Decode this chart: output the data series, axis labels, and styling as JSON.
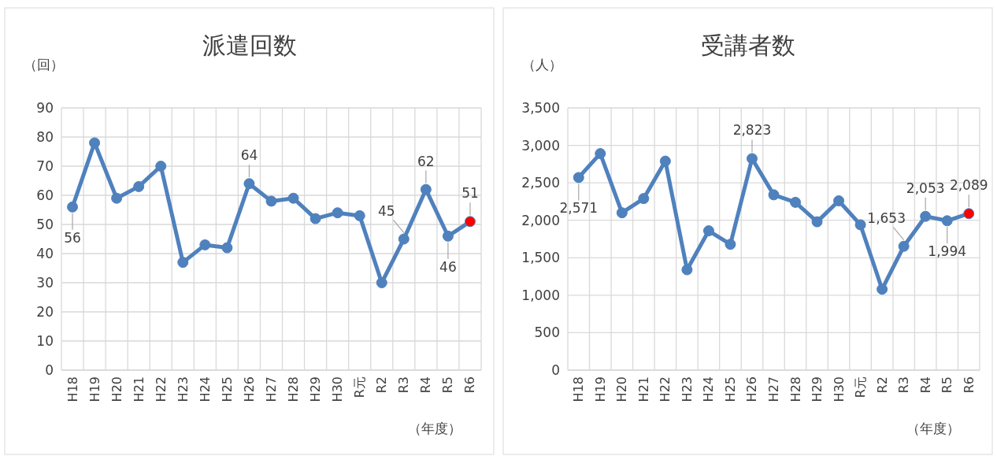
{
  "chart_data": [
    {
      "type": "line",
      "title": "派遣回数",
      "ylabel": "（回）",
      "xlabel": "（年度）",
      "categories": [
        "H18",
        "H19",
        "H20",
        "H21",
        "H22",
        "H23",
        "H24",
        "H25",
        "H26",
        "H27",
        "H28",
        "H29",
        "H30",
        "R元",
        "R2",
        "R3",
        "R4",
        "R5",
        "R6"
      ],
      "series": [
        {
          "color": "#4f81bd",
          "colors": [
            "#4f81bd",
            "#4f81bd",
            "#4f81bd",
            "#4f81bd",
            "#4f81bd",
            "#4f81bd",
            "#4f81bd",
            "#4f81bd",
            "#4f81bd",
            "#4f81bd",
            "#4f81bd",
            "#4f81bd",
            "#4f81bd",
            "#4f81bd",
            "#4f81bd",
            "#4f81bd",
            "#4f81bd",
            "#4f81bd",
            "#ff0000"
          ],
          "values": [
            56,
            78,
            59,
            63,
            70,
            37,
            43,
            42,
            64,
            58,
            59,
            52,
            54,
            53,
            30,
            45,
            62,
            46,
            51
          ],
          "value_labels": [
            "56",
            null,
            null,
            null,
            null,
            null,
            null,
            null,
            "64",
            null,
            null,
            null,
            null,
            null,
            null,
            "45",
            "62",
            "46",
            "51"
          ]
        }
      ],
      "ylim": [
        0,
        90
      ],
      "yticks": [
        0,
        10,
        20,
        30,
        40,
        50,
        60,
        70,
        80,
        90
      ],
      "grid": true,
      "marker": "circle",
      "line_style": "solid"
    },
    {
      "type": "line",
      "title": "受講者数",
      "ylabel": "（人）",
      "xlabel": "（年度）",
      "categories": [
        "H18",
        "H19",
        "H20",
        "H21",
        "H22",
        "H23",
        "H24",
        "H25",
        "H26",
        "H27",
        "H28",
        "H29",
        "H30",
        "R元",
        "R2",
        "R3",
        "R4",
        "R5",
        "R6"
      ],
      "series": [
        {
          "color": "#4f81bd",
          "colors": [
            "#4f81bd",
            "#4f81bd",
            "#4f81bd",
            "#4f81bd",
            "#4f81bd",
            "#4f81bd",
            "#4f81bd",
            "#4f81bd",
            "#4f81bd",
            "#4f81bd",
            "#4f81bd",
            "#4f81bd",
            "#4f81bd",
            "#4f81bd",
            "#4f81bd",
            "#4f81bd",
            "#4f81bd",
            "#4f81bd",
            "#ff0000"
          ],
          "values": [
            2571,
            2890,
            2100,
            2290,
            2790,
            1340,
            1860,
            1680,
            2823,
            2340,
            2240,
            1980,
            2260,
            1940,
            1080,
            1653,
            2053,
            1994,
            2089
          ],
          "value_labels": [
            "2,571",
            null,
            null,
            null,
            null,
            null,
            null,
            null,
            "2,823",
            null,
            null,
            null,
            null,
            null,
            null,
            "1,653",
            "2,053",
            "1,994",
            "2,089"
          ]
        }
      ],
      "ylim": [
        0,
        3500
      ],
      "yticks": [
        0,
        {
          "value": 500,
          "label": "500"
        },
        {
          "value": 1000,
          "label": "1,000"
        },
        {
          "value": 1500,
          "label": "1,500"
        },
        {
          "value": 2000,
          "label": "2,000"
        },
        {
          "value": 2500,
          "label": "2,500"
        },
        {
          "value": 3000,
          "label": "3,000"
        },
        {
          "value": 3500,
          "label": "3,500"
        }
      ],
      "grid": true,
      "marker": "circle",
      "line_style": "solid"
    }
  ]
}
